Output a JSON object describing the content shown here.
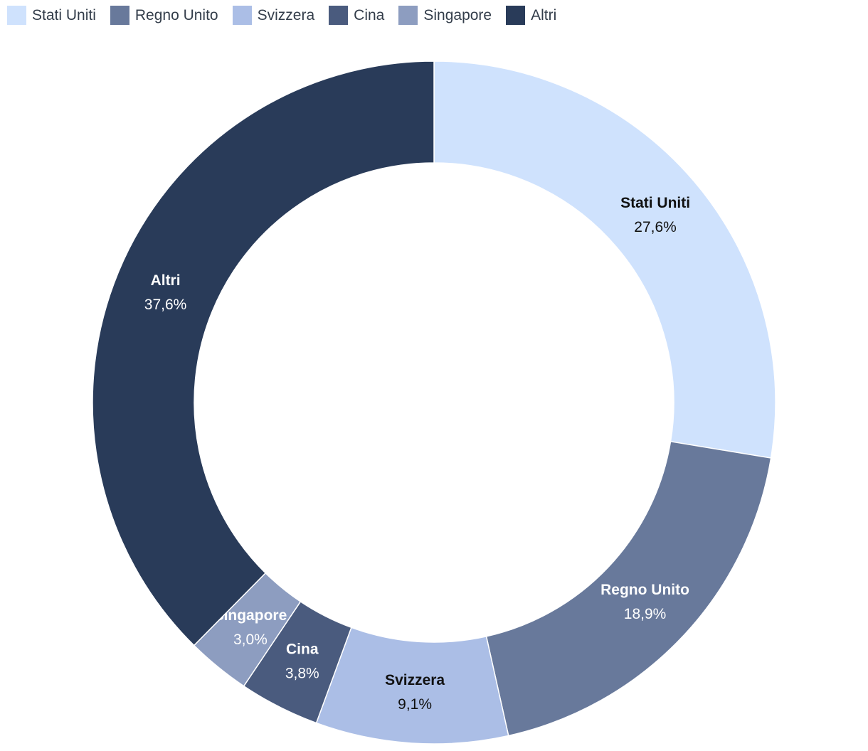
{
  "chart_data": {
    "type": "pie",
    "variant": "donut",
    "legend_position": "top-left",
    "start": "top, clockwise",
    "slices": [
      {
        "label": "Stati Uniti",
        "value": 27.6,
        "display": "27,6%",
        "color": "#cfe2fd",
        "text_color": "#111111"
      },
      {
        "label": "Regno Unito",
        "value": 18.9,
        "display": "18,9%",
        "color": "#68799b",
        "text_color": "#ffffff"
      },
      {
        "label": "Svizzera",
        "value": 9.1,
        "display": "9,1%",
        "color": "#abbee6",
        "text_color": "#111111"
      },
      {
        "label": "Cina",
        "value": 3.8,
        "display": "3,8%",
        "color": "#4a5b7e",
        "text_color": "#ffffff"
      },
      {
        "label": "Singapore",
        "value": 3.0,
        "display": "3,0%",
        "color": "#8d9dc0",
        "text_color": "#ffffff"
      },
      {
        "label": "Altri",
        "value": 37.6,
        "display": "37,6%",
        "color": "#293b59",
        "text_color": "#ffffff"
      }
    ]
  }
}
